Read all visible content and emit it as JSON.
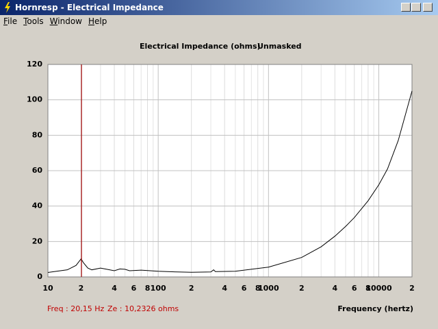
{
  "window": {
    "title": "Hornresp - Electrical Impedance"
  },
  "menu": [
    "File",
    "Tools",
    "Window",
    "Help"
  ],
  "chart_data": {
    "type": "line",
    "title": "Electrical Impedance (ohms)",
    "subtitle": "Unmasked",
    "x_label": "Frequency (hertz)",
    "x_scale": "log",
    "grid": true,
    "xlim": [
      10,
      20000
    ],
    "ylim": [
      0,
      120
    ],
    "yticks": [
      0,
      20,
      40,
      60,
      80,
      100,
      120
    ],
    "xticks": [
      10,
      {
        "value": 20,
        "label": "2"
      },
      {
        "value": 40,
        "label": "4"
      },
      {
        "value": 60,
        "label": "6"
      },
      {
        "value": 80,
        "label": "8"
      },
      100,
      {
        "value": 200,
        "label": "2"
      },
      {
        "value": 400,
        "label": "4"
      },
      {
        "value": 600,
        "label": "6"
      },
      {
        "value": 800,
        "label": "8"
      },
      1000,
      {
        "value": 2000,
        "label": "2"
      },
      {
        "value": 4000,
        "label": "4"
      },
      {
        "value": 6000,
        "label": "6"
      },
      {
        "value": 8000,
        "label": "8"
      },
      10000,
      {
        "value": 20000,
        "label": "2"
      }
    ],
    "x_minor_ticks": [
      30,
      50,
      70,
      90,
      300,
      500,
      700,
      900,
      3000,
      5000,
      7000,
      9000
    ],
    "x": [
      10,
      15,
      18,
      20,
      21,
      23,
      25,
      30,
      33,
      40,
      45,
      50,
      55,
      70,
      100,
      150,
      200,
      300,
      318,
      330,
      500,
      1000,
      2000,
      3000,
      4000,
      5000,
      6000,
      8000,
      10000,
      12000,
      15000,
      20000
    ],
    "series": [
      {
        "name": "Ze",
        "color": "#000000",
        "values": [
          2.5,
          4,
          6.5,
          10.2,
          8,
          5,
          4,
          5,
          4.5,
          3.5,
          4.5,
          4.3,
          3.5,
          3.8,
          3.2,
          2.8,
          2.6,
          2.8,
          4,
          3,
          3.2,
          5.5,
          11,
          17,
          23,
          28.5,
          33.5,
          43,
          52,
          61,
          77,
          105
        ]
      }
    ],
    "cursor": {
      "x": 20.15,
      "color": "#a00000",
      "freq_label": "Freq : 20,15 Hz",
      "ze_label": "Ze : 10,2326 ohms"
    }
  }
}
